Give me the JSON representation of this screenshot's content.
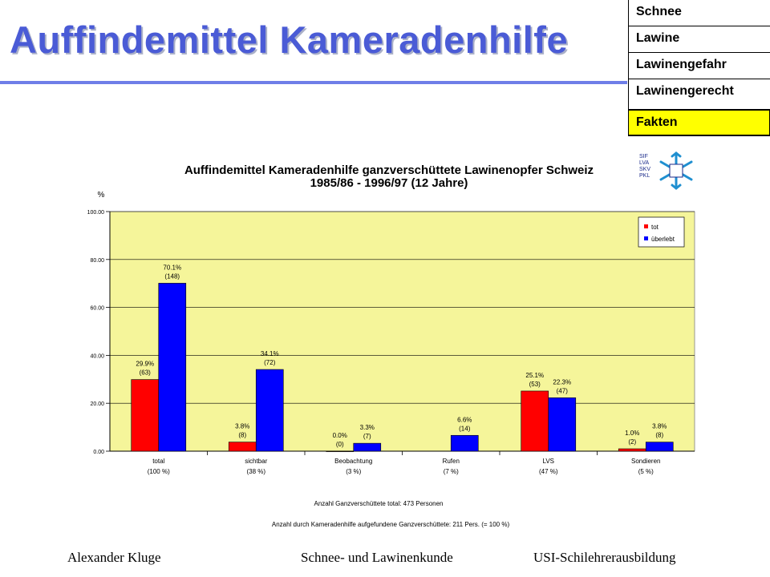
{
  "slide": {
    "title": "Auffindemittel Kameradenhilfe",
    "nav": [
      "Schnee",
      "Lawine",
      "Lawinengefahr",
      "Lawinengerecht",
      "Fakten"
    ],
    "active_nav": "Fakten",
    "logo": {
      "lines": [
        "SIF",
        "LVA",
        "SKV",
        "PKL"
      ]
    },
    "footer": {
      "left": "Alexander Kluge",
      "center": "Schnee- und Lawinenkunde",
      "right": "USI-Schilehrerausbildung"
    }
  },
  "chart_data": {
    "type": "bar",
    "title": "Auffindemittel Kameradenhilfe ganzverschüttete Lawinenopfer Schweiz",
    "subtitle": "1985/86 - 1996/97 (12 Jahre)",
    "ylabel": "%",
    "ylim": [
      0,
      100
    ],
    "yticks": [
      "0.00",
      "20.00",
      "40.00",
      "60.00",
      "80.00",
      "100.00"
    ],
    "grid": true,
    "legend_position": "top-right",
    "categories": [
      "total",
      "sichtbar",
      "Beobachtung",
      "Rufen",
      "LVS",
      "Sondieren"
    ],
    "category_sublabels": [
      "(100 %)",
      "(38 %)",
      "(3 %)",
      "(7 %)",
      "(47 %)",
      "(5 %)"
    ],
    "series": [
      {
        "name": "tot",
        "color": "#ff0000",
        "values": [
          29.9,
          3.8,
          0.0,
          null,
          25.1,
          1.0
        ],
        "labels": [
          "29.9%",
          "3.8%",
          "0.0%",
          null,
          "25.1%",
          "1.0%"
        ],
        "counts": [
          "(63)",
          "(8)",
          "(0)",
          null,
          "(53)",
          "(2)"
        ]
      },
      {
        "name": "überlebt",
        "color": "#0000ff",
        "values": [
          70.1,
          34.1,
          3.3,
          6.6,
          22.3,
          3.8
        ],
        "labels": [
          "70.1%",
          "34.1%",
          "3.3%",
          "6.6%",
          "22.3%",
          "3.8%"
        ],
        "counts": [
          "(148)",
          "(72)",
          "(7)",
          "(14)",
          "(47)",
          "(8)"
        ]
      }
    ],
    "notes": [
      "Anzahl Ganzverschüttete total: 473 Personen",
      "Anzahl durch Kameradenhilfe aufgefundene Ganzverschüttete: 211 Pers. (= 100 %)"
    ],
    "plot_background": "#f5f59a"
  }
}
